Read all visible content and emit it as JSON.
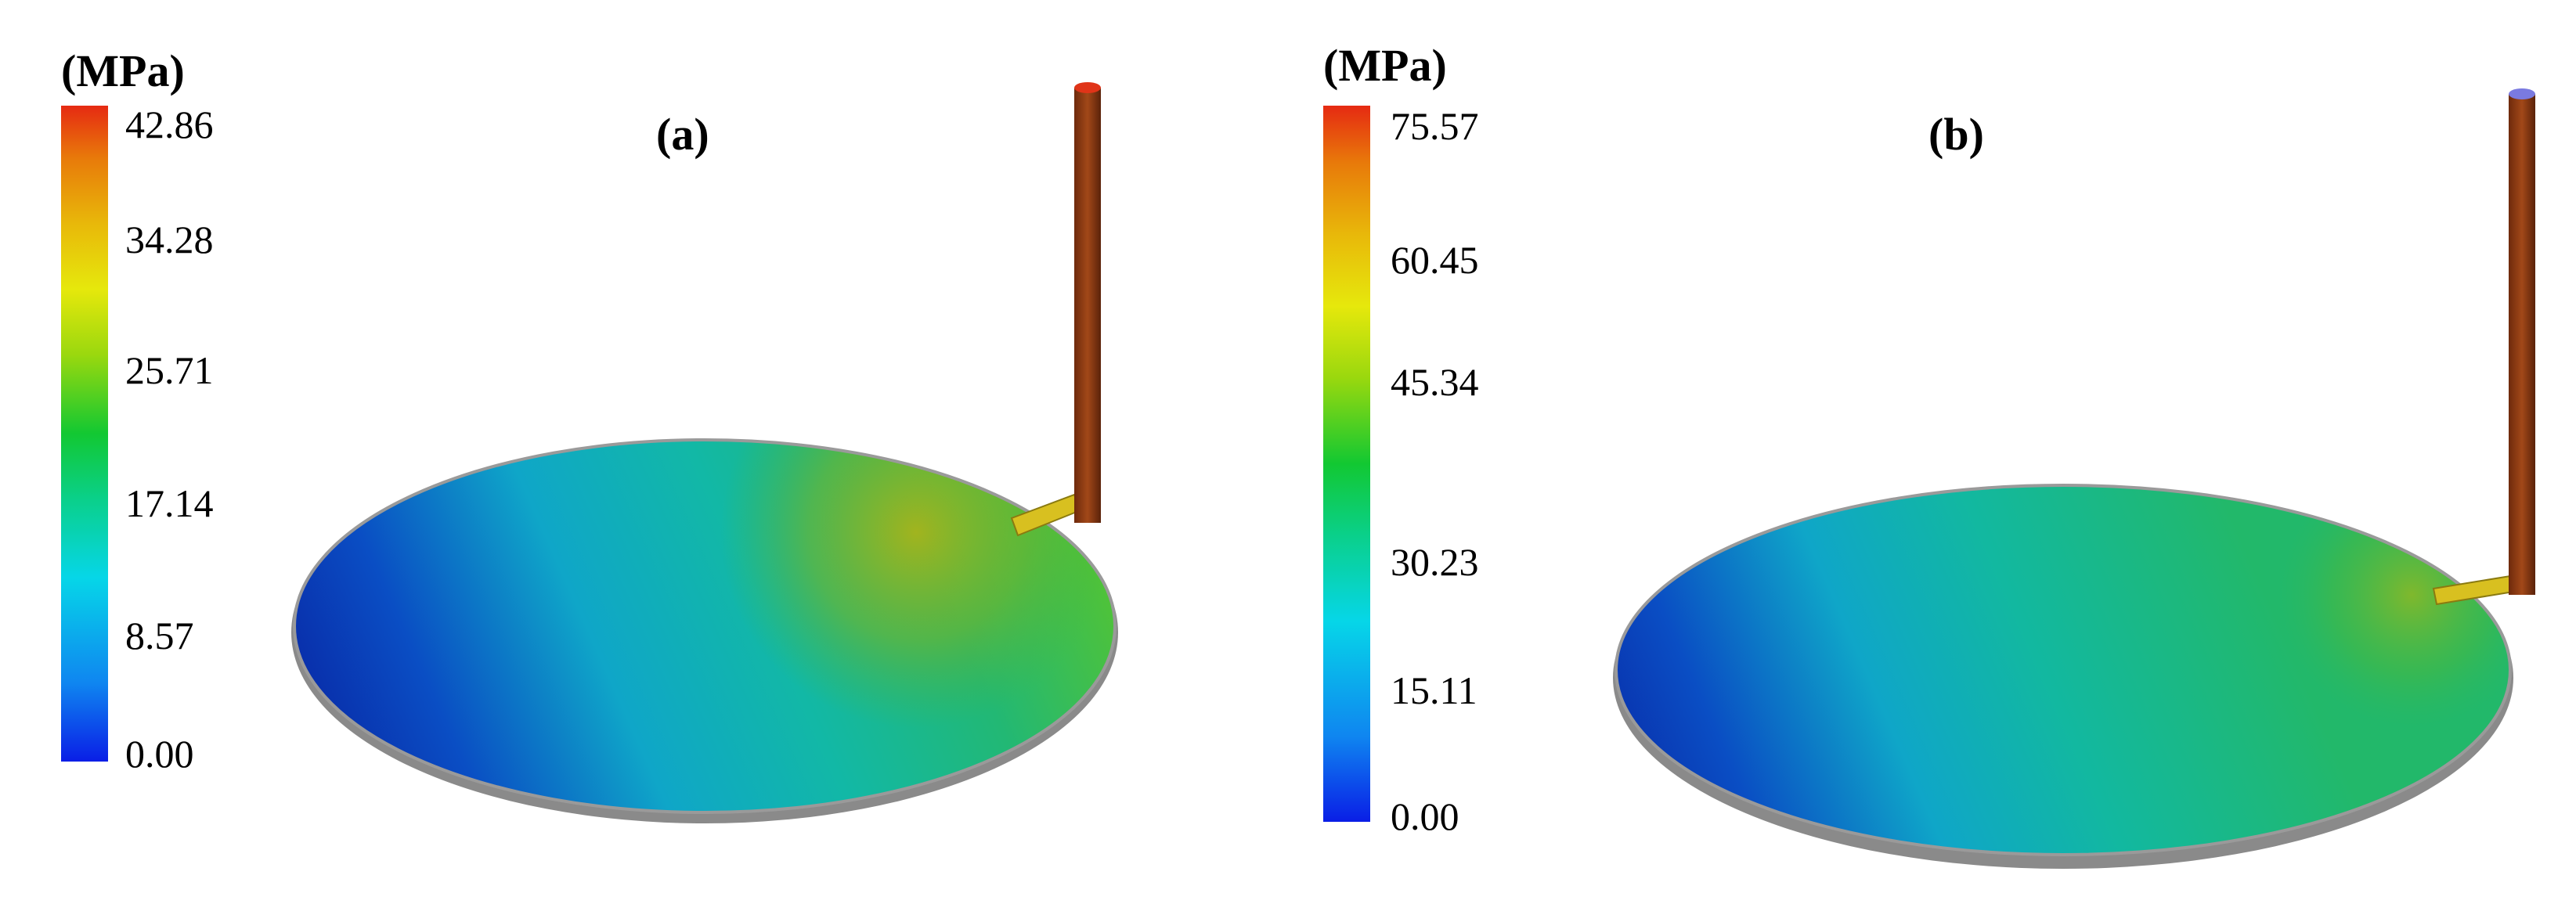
{
  "panels": [
    {
      "label": "(a)",
      "unit": "(MPa)",
      "ticks": [
        "42.86",
        "34.28",
        "25.71",
        "17.14",
        "8.57",
        "0.00"
      ],
      "scale_min": 0.0,
      "scale_max": 42.86
    },
    {
      "label": "(b)",
      "unit": "(MPa)",
      "ticks": [
        "75.57",
        "60.45",
        "45.34",
        "30.23",
        "15.11",
        "0.00"
      ],
      "scale_min": 0.0,
      "scale_max": 75.57
    }
  ],
  "colors": {
    "low": "#0a1ee6",
    "mid": "#12c832",
    "high": "#e62a12",
    "sprue": "#8a3a12",
    "runner": "#e0c020"
  }
}
